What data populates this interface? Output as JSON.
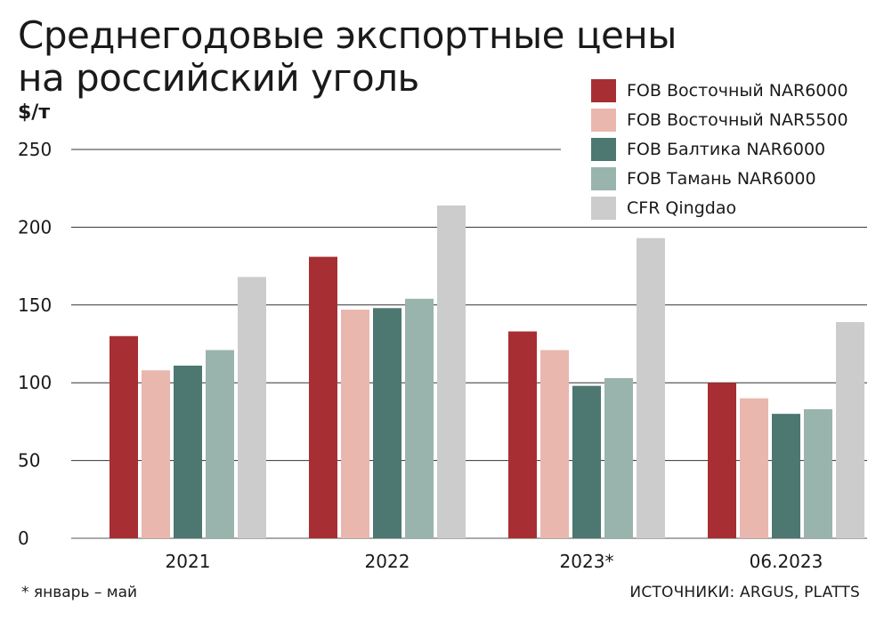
{
  "chart_data": {
    "type": "bar",
    "title_lines": [
      "Среднегодовые экспортные цены",
      "на российский уголь"
    ],
    "ylabel": "$/т",
    "ylim": [
      0,
      250
    ],
    "yticks": [
      0,
      50,
      100,
      150,
      200,
      250
    ],
    "ytick_labels": [
      "0",
      "50",
      "100",
      "150",
      "200",
      "250"
    ],
    "grid": true,
    "legend_position": "top-right",
    "categories": [
      "2021",
      "2022",
      "2023*",
      "06.2023"
    ],
    "series": [
      {
        "name": "FOB Восточный NAR6000",
        "color": "#a72f33",
        "values": [
          130,
          181,
          133,
          100
        ]
      },
      {
        "name": "FOB Восточный NAR5500",
        "color": "#e9b7ae",
        "values": [
          108,
          147,
          121,
          90
        ]
      },
      {
        "name": "FOB Балтика NAR6000",
        "color": "#4d7771",
        "values": [
          111,
          148,
          98,
          80
        ]
      },
      {
        "name": "FOB Тамань NAR6000",
        "color": "#99b4ad",
        "values": [
          121,
          154,
          103,
          83
        ]
      },
      {
        "name": "CFR Qingdao",
        "color": "#cccccc",
        "values": [
          168,
          214,
          193,
          139
        ]
      }
    ],
    "footnote": "* январь – май",
    "source": "ИСТОЧНИКИ: ARGUS, PLATTS"
  }
}
